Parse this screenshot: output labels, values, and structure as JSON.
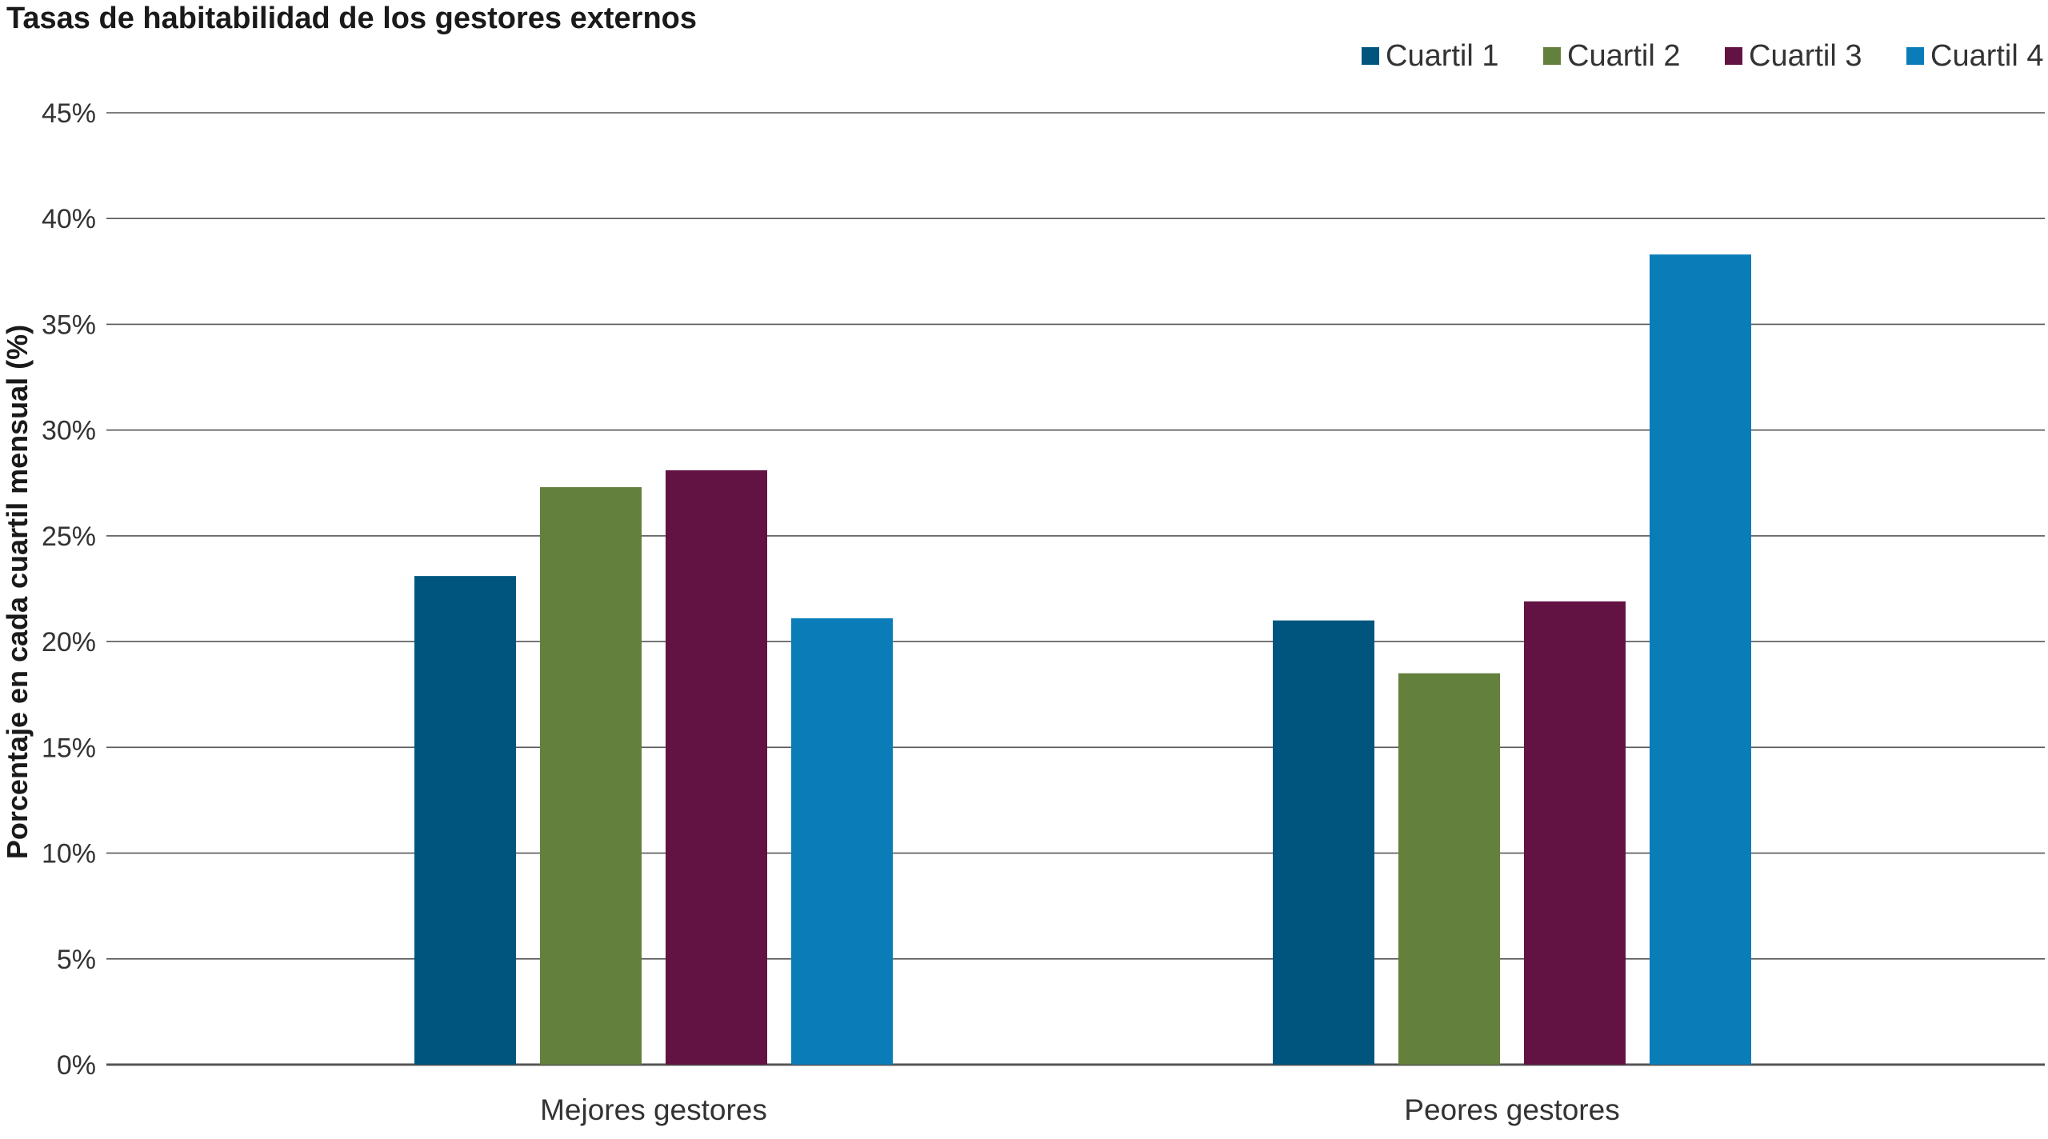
{
  "chart_data": {
    "type": "bar",
    "title": "Tasas de habitabilidad de los gestores externos",
    "xlabel": "",
    "ylabel": "Porcentaje en cada cuartil mensual (%)",
    "ylim": [
      0,
      45
    ],
    "ytick_step": 5,
    "ytick_format": "{v}%",
    "grid": true,
    "legend_position": "top-right",
    "categories": [
      "Mejores gestores",
      "Peores gestores"
    ],
    "series": [
      {
        "name": "Cuartil 1",
        "color": "#00557F",
        "values": [
          23.1,
          21.0
        ]
      },
      {
        "name": "Cuartil 2",
        "color": "#63803C",
        "values": [
          27.3,
          18.5
        ]
      },
      {
        "name": "Cuartil 3",
        "color": "#621343",
        "values": [
          28.1,
          21.9
        ]
      },
      {
        "name": "Cuartil 4",
        "color": "#0A7DB9",
        "values": [
          21.1,
          38.3
        ]
      }
    ]
  }
}
